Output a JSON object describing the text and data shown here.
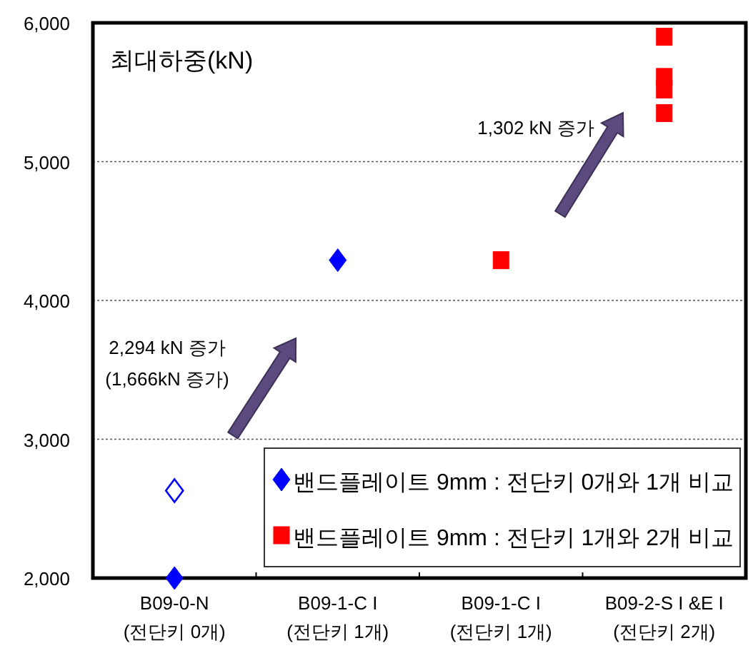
{
  "chart_data": {
    "type": "scatter",
    "title": "최대하중(kN)",
    "categories": [
      "B09-0-N\n(전단키 0개)",
      "B09-1-C I\n(전단키 1개)",
      "B09-1-C I\n(전단키 1개)",
      "B09-2-S I &E I\n(전단키 2개)"
    ],
    "series": [
      {
        "name": "밴드플레이트 9mm : 전단키 0개와 1개 비교",
        "color": "#0000ff",
        "marker": "diamond",
        "values": [
          2000,
          4290,
          null,
          null
        ]
      },
      {
        "color": "#0000ff",
        "marker": "diamond",
        "values": [
          2630,
          null,
          null,
          null
        ]
      },
      {
        "name": "밴드플레이트 9mm : 전단키 1개와 2개 비교",
        "color": "#ff0000",
        "marker": "square",
        "values": [
          null,
          null,
          4290,
          5900
        ]
      },
      {
        "color": "#ff0000",
        "marker": "square",
        "values": [
          null,
          null,
          null,
          5610
        ]
      },
      {
        "color": "#ff0000",
        "marker": "square",
        "values": [
          null,
          null,
          null,
          5520
        ]
      },
      {
        "color": "#ff0000",
        "marker": "square",
        "values": [
          null,
          null,
          null,
          5350
        ]
      }
    ],
    "ylim": [
      2000,
      6000
    ],
    "yticks": [
      {
        "value": 2000,
        "label": "2,000"
      },
      {
        "value": 3000,
        "label": "3,000"
      },
      {
        "value": 4000,
        "label": "4,000"
      },
      {
        "value": 5000,
        "label": "5,000"
      },
      {
        "value": 6000,
        "label": "6,000"
      }
    ],
    "grid": "y",
    "legend": "bottom right",
    "annotations": [
      "2,294 kN 증가\n(1,666kN 증가)",
      "1,302 kN 증가"
    ]
  }
}
